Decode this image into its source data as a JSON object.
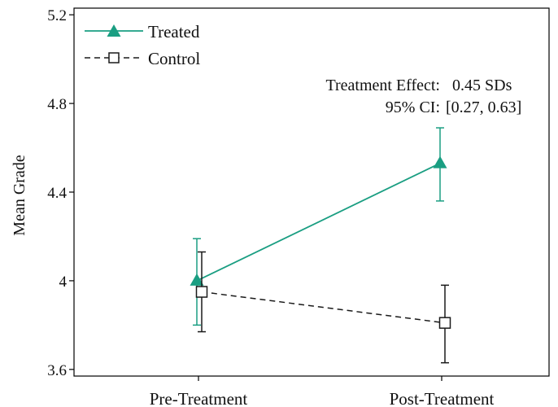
{
  "colors": {
    "treated": "#1a9e82",
    "control": "#1a1a1a",
    "axis": "#000000"
  },
  "chart_data": {
    "type": "line",
    "title": "",
    "xlabel": "",
    "ylabel": "Mean Grade",
    "categories": [
      "Pre-Treatment",
      "Post-Treatment"
    ],
    "ylim": [
      3.57,
      5.23
    ],
    "yticks": [
      3.6,
      4,
      4.4,
      4.8,
      5.2
    ],
    "ytick_labels": [
      "3.6",
      "4",
      "4.4",
      "4.8",
      "5.2"
    ],
    "legend_position": "top-left",
    "grid": false,
    "series": [
      {
        "name": "Treated",
        "key": "treated",
        "marker": "triangle",
        "line": "solid",
        "values": [
          4.0,
          4.53
        ],
        "ci_low": [
          3.8,
          4.36
        ],
        "ci_high": [
          4.19,
          4.69
        ]
      },
      {
        "name": "Control",
        "key": "control",
        "marker": "square-open",
        "line": "dashed",
        "values": [
          3.95,
          3.81
        ],
        "ci_low": [
          3.77,
          3.63
        ],
        "ci_high": [
          4.13,
          3.98
        ]
      }
    ],
    "annotations": {
      "effect_label": "Treatment Effect:",
      "effect_value": "0.45 SDs",
      "ci_label": "95% CI:",
      "ci_value": "[0.27, 0.63]"
    }
  }
}
